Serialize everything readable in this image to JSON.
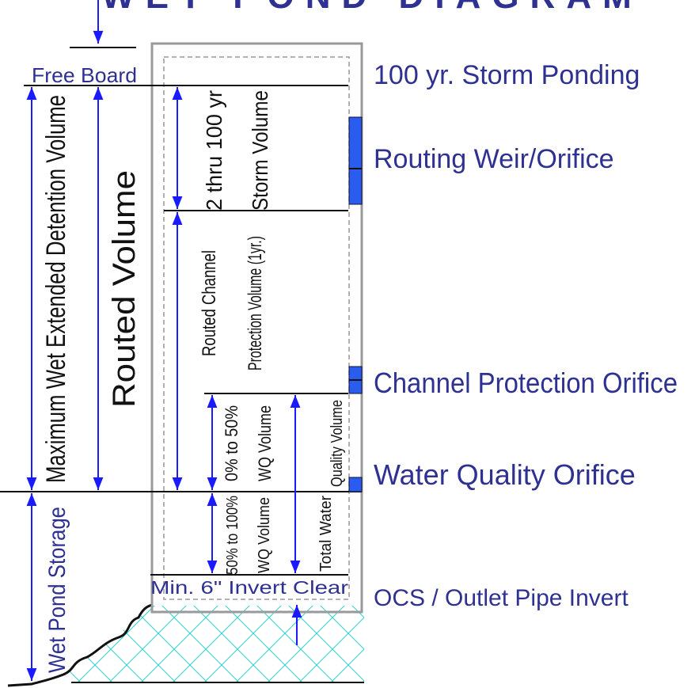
{
  "title": "WET POND DIAGRAM",
  "levels": {
    "free_board": "Free Board",
    "storm_ponding": "100 yr. Storm Ponding",
    "routing_weir": "Routing Weir/Orifice",
    "channel_orifice": "Channel Protection Orifice",
    "wq_orifice": "Water Quality Orifice",
    "outlet_invert": "OCS / Outlet Pipe Invert",
    "invert_clear": "Min. 6\" Invert Clear"
  },
  "volumes": {
    "max_wet_ed": "Maximum Wet Extended Detention Volume",
    "routed": "Routed Volume",
    "storm_1": "2 thru 100 yr",
    "storm_2": "Storm Volume",
    "cp_1": "Routed Channel",
    "cp_2": "Protection Volume  (1yr.)",
    "wq50_1": "0% to 50%",
    "wq50_2": "WQ Volume",
    "wq100_1": "50% to 100%",
    "wq100_2": "WQ Volume",
    "total_1": "Total Water",
    "total_2": "Quality Volume",
    "wet_storage": "Wet Pond Storage"
  }
}
